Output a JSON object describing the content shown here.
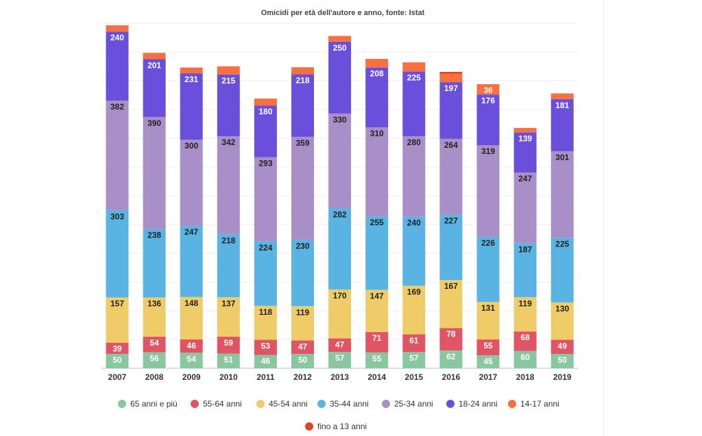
{
  "chart_data": {
    "type": "bar",
    "stacked": true,
    "title": "Omicidi per età dell'autore e anno, fonte: Istat",
    "categories": [
      "2007",
      "2008",
      "2009",
      "2010",
      "2011",
      "2012",
      "2013",
      "2014",
      "2015",
      "2016",
      "2017",
      "2018",
      "2019"
    ],
    "series": [
      {
        "name": "65 anni e più",
        "color": "#88c79f",
        "values": [
          50,
          56,
          54,
          51,
          46,
          50,
          57,
          55,
          57,
          62,
          45,
          60,
          50
        ]
      },
      {
        "name": "55-64 anni",
        "color": "#e05463",
        "values": [
          39,
          54,
          46,
          59,
          53,
          47,
          47,
          71,
          61,
          78,
          55,
          68,
          49
        ]
      },
      {
        "name": "45-54 anni",
        "color": "#efcc68",
        "values": [
          157,
          136,
          148,
          137,
          118,
          119,
          170,
          147,
          169,
          167,
          131,
          119,
          130
        ]
      },
      {
        "name": "35-44 anni",
        "color": "#5ab4e3",
        "values": [
          303,
          238,
          247,
          218,
          224,
          230,
          282,
          255,
          240,
          227,
          226,
          187,
          225
        ]
      },
      {
        "name": "25-34 anni",
        "color": "#a98fc8",
        "values": [
          382,
          390,
          300,
          342,
          293,
          359,
          330,
          310,
          280,
          264,
          319,
          247,
          301
        ]
      },
      {
        "name": "18-24 anni",
        "color": "#6a4fdc",
        "values": [
          240,
          201,
          231,
          215,
          180,
          218,
          250,
          208,
          225,
          197,
          176,
          139,
          181
        ]
      },
      {
        "name": "14-17 anni",
        "color": "#f87040",
        "values": [
          22,
          22,
          20,
          28,
          24,
          24,
          20,
          30,
          32,
          30,
          36,
          16,
          20
        ]
      },
      {
        "name": "fino a 13 anni",
        "color": "#e0452a",
        "values": [
          0,
          0,
          0,
          0,
          0,
          0,
          0,
          0,
          0,
          6,
          0,
          0,
          0
        ]
      }
    ],
    "ylim": [
      0,
      1200
    ],
    "grid": true,
    "legend_position": "bottom"
  }
}
